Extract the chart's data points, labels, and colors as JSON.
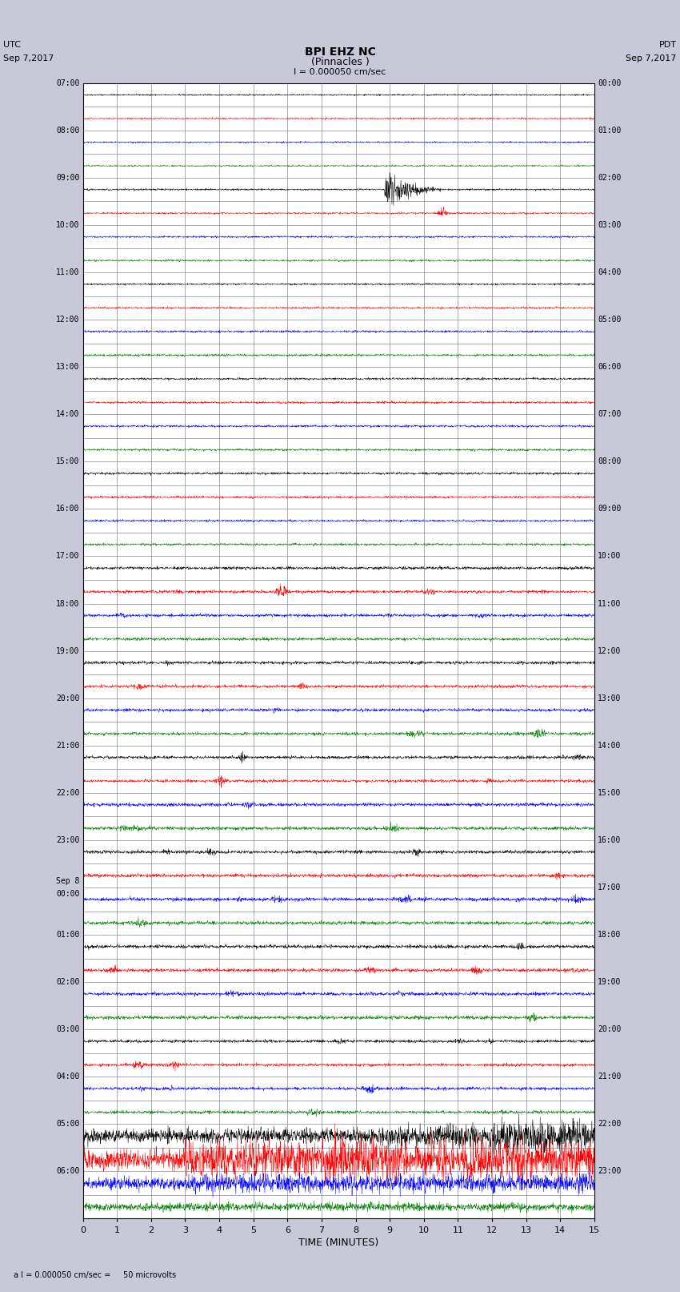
{
  "title_line1": "BPI EHZ NC",
  "title_line2": "(Pinnacles )",
  "scale_text": "I = 0.000050 cm/sec",
  "left_label_1": "UTC",
  "left_label_2": "Sep 7,2017",
  "right_label_1": "PDT",
  "right_label_2": "Sep 7,2017",
  "bottom_label": "a I = 0.000050 cm/sec =     50 microvolts",
  "xlabel": "TIME (MINUTES)",
  "xmin": 0,
  "xmax": 15,
  "xticks": [
    0,
    1,
    2,
    3,
    4,
    5,
    6,
    7,
    8,
    9,
    10,
    11,
    12,
    13,
    14,
    15
  ],
  "num_rows": 48,
  "colors": [
    "black",
    "red",
    "blue",
    "green"
  ],
  "bg_color": "#c8c8d8",
  "plot_bg": "white",
  "grid_color": "#888899"
}
